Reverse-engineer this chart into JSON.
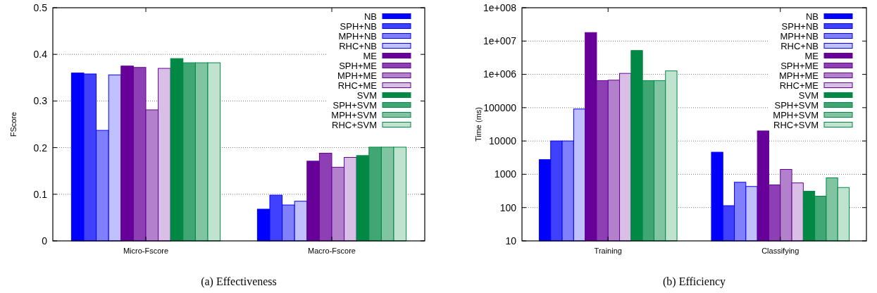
{
  "chart_data": [
    {
      "type": "bar",
      "ylabel": "FScore",
      "categories": [
        "Micro-Fscore",
        "Macro-Fscore"
      ],
      "ylim": [
        0,
        0.5
      ],
      "yticks": [
        0,
        0.1,
        0.2,
        0.3,
        0.4,
        0.5
      ],
      "grid": "y",
      "legend": "top right",
      "annotations": [
        "(a)  Effectiveness"
      ],
      "series": [
        {
          "name": "NB",
          "color": "#0000ff",
          "values": [
            0.36,
            0.068
          ]
        },
        {
          "name": "SPH+NB",
          "color": "#4040ff",
          "values": [
            0.358,
            0.098
          ]
        },
        {
          "name": "MPH+NB",
          "color": "#8080ff",
          "values": [
            0.237,
            0.077
          ]
        },
        {
          "name": "RHC+NB",
          "color": "#c0c0ff",
          "values": [
            0.356,
            0.085
          ]
        },
        {
          "name": "ME",
          "color": "#660099",
          "values": [
            0.375,
            0.171
          ]
        },
        {
          "name": "SPH+ME",
          "color": "#8c40b3",
          "values": [
            0.372,
            0.188
          ]
        },
        {
          "name": "MPH+ME",
          "color": "#b380cc",
          "values": [
            0.281,
            0.158
          ]
        },
        {
          "name": "RHC+ME",
          "color": "#d9bfe6",
          "values": [
            0.37,
            0.179
          ]
        },
        {
          "name": "SVM",
          "color": "#008844",
          "values": [
            0.391,
            0.183
          ]
        },
        {
          "name": "SPH+SVM",
          "color": "#40a673",
          "values": [
            0.382,
            0.201
          ]
        },
        {
          "name": "MPH+SVM",
          "color": "#80c4a2",
          "values": [
            0.382,
            0.201
          ]
        },
        {
          "name": "RHC+SVM",
          "color": "#c0e3d0",
          "values": [
            0.382,
            0.201
          ]
        }
      ]
    },
    {
      "type": "bar",
      "ylabel": "Time (ms)",
      "categories": [
        "Training",
        "Classifying"
      ],
      "log": true,
      "ylim": [
        10,
        100000000
      ],
      "yticks": [
        10,
        100,
        1000,
        10000,
        100000,
        {
          "value": 1000000,
          "label": "1e+006"
        },
        {
          "value": 10000000,
          "label": "1e+007"
        },
        {
          "value": 100000000,
          "label": "1e+008"
        }
      ],
      "grid": "y",
      "legend": "top right",
      "annotations": [
        "(b)  Efficiency"
      ],
      "series": [
        {
          "name": "NB",
          "color": "#0000ff",
          "values": [
            2750,
            4600
          ]
        },
        {
          "name": "SPH+NB",
          "color": "#4040ff",
          "values": [
            10000,
            114
          ]
        },
        {
          "name": "MPH+NB",
          "color": "#8080ff",
          "values": [
            10000,
            575
          ]
        },
        {
          "name": "RHC+NB",
          "color": "#c0c0ff",
          "values": [
            91000,
            430
          ]
        },
        {
          "name": "ME",
          "color": "#660099",
          "values": [
            18000000,
            20000
          ]
        },
        {
          "name": "SPH+ME",
          "color": "#8c40b3",
          "values": [
            650000,
            480
          ]
        },
        {
          "name": "MPH+ME",
          "color": "#b380cc",
          "values": [
            670000,
            1400
          ]
        },
        {
          "name": "RHC+ME",
          "color": "#d9bfe6",
          "values": [
            1070000,
            550
          ]
        },
        {
          "name": "SVM",
          "color": "#008844",
          "values": [
            5200000,
            310
          ]
        },
        {
          "name": "SPH+SVM",
          "color": "#40a673",
          "values": [
            650000,
            220
          ]
        },
        {
          "name": "MPH+SVM",
          "color": "#80c4a2",
          "values": [
            650000,
            780
          ]
        },
        {
          "name": "RHC+SVM",
          "color": "#c0e3d0",
          "values": [
            1270000,
            400
          ]
        }
      ]
    }
  ]
}
